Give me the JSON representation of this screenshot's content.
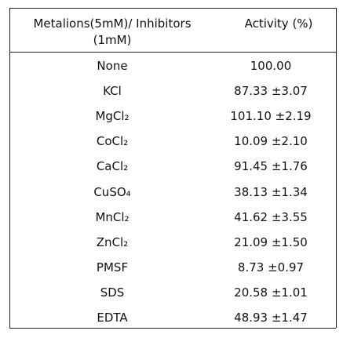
{
  "table": {
    "header": [
      [
        "Metalions(5mM)/ Inhibitors",
        "(1mM)"
      ],
      "Activity (%)"
    ],
    "rows": [
      [
        "None",
        "100.00"
      ],
      [
        "KCl",
        "87.33 ±3.07"
      ],
      [
        "MgCl₂",
        "101.10 ±2.19"
      ],
      [
        "CoCl₂",
        "10.09 ±2.10"
      ],
      [
        "CaCl₂",
        "91.45 ±1.76"
      ],
      [
        "CuSO₄",
        "38.13 ±1.34"
      ],
      [
        "MnCl₂",
        "41.62 ±3.55"
      ],
      [
        "ZnCl₂",
        "21.09 ±1.50"
      ],
      [
        "PMSF",
        "8.73 ±0.97"
      ],
      [
        "SDS",
        "20.58 ±1.01"
      ],
      [
        "EDTA",
        "48.93 ±1.47"
      ]
    ]
  }
}
